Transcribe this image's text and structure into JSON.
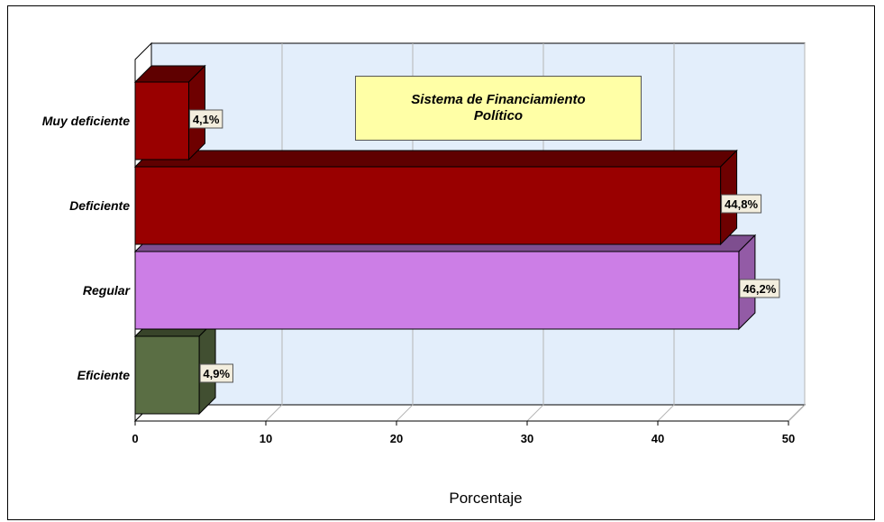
{
  "chart_data": {
    "type": "bar",
    "orientation": "horizontal",
    "title": "Sistema de Financiamiento Político",
    "categories": [
      "Muy deficiente",
      "Deficiente",
      "Regular",
      "Eficiente"
    ],
    "values": [
      4.1,
      44.8,
      46.2,
      4.9
    ],
    "data_labels": [
      "4,1%",
      "44,8%",
      "46,2%",
      "4,9%"
    ],
    "colors": [
      "#990000",
      "#990000",
      "#cc7ee6",
      "#5a6e44"
    ],
    "xlabel": "Porcentaje",
    "ylabel": "",
    "xlim": [
      0,
      50
    ],
    "x_ticks": [
      "0",
      "10",
      "20",
      "30",
      "40",
      "50"
    ],
    "grid": true,
    "style": "3d",
    "plot_background": "#e3eefb"
  }
}
